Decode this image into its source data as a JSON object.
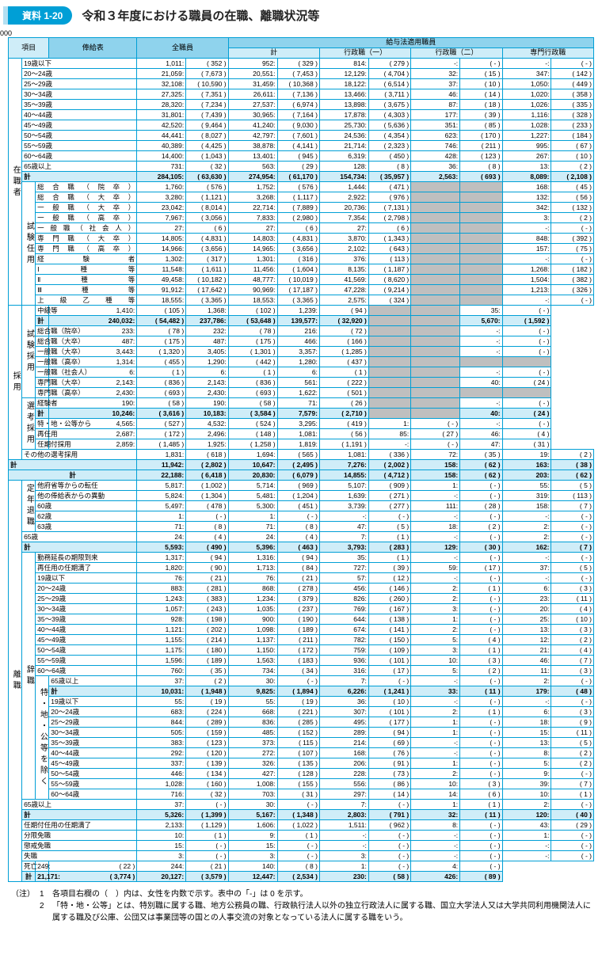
{
  "badge": "資料 1-20",
  "title": "令和３年度における職員の在職、離職状況等",
  "headers": {
    "item": "項目",
    "salary_table": "俸給表",
    "all_emp": "全職員",
    "salary_law_emp": "給与法適用職員",
    "sub_total": "計",
    "admin1": "行政職（一）",
    "admin2": "行政職（二）",
    "special": "専門行政職"
  },
  "footnotes": {
    "tag": "（注）",
    "n1": "各項目右欄の（　）内は、女性を内数で示す。表中の「-」は 0 を示す。",
    "n2": "「特・地・公等」とは、特別職に属する職、地方公務員の職、行政執行法人以外の独立行政法人に属する職、国立大学法人又は大学共同利用機関法人に属する職及び公庫、公団又は事業団等の国との人事交流の対象となっている法人に属する職をいう。"
  },
  "vlabels": {
    "zaishoku": "在職者",
    "shiken_ninyo": "試験任用",
    "saiyou": "採用",
    "shiken_saiyou": "試験採用",
    "senkou_saiyou": "選考採用",
    "teinen_taishoku": "定年退職",
    "rishoku": "離職",
    "jishoku": "辞職",
    "toku_chi": "特・地・公等を除く"
  },
  "rows": [
    {
      "l": "19歳以下",
      "v": [
        "1,011",
        "352",
        "952",
        "329",
        "814",
        "279",
        "-",
        "-",
        "-",
        "-"
      ]
    },
    {
      "l": "20～24歳",
      "v": [
        "21,059",
        "7,673",
        "20,551",
        "7,453",
        "12,129",
        "4,704",
        "32",
        "15",
        "347",
        "142"
      ]
    },
    {
      "l": "25～29歳",
      "v": [
        "32,108",
        "10,590",
        "31,459",
        "10,368",
        "18,122",
        "6,514",
        "37",
        "10",
        "1,050",
        "449"
      ]
    },
    {
      "l": "30～34歳",
      "v": [
        "27,325",
        "7,351",
        "26,611",
        "7,136",
        "13,466",
        "3,711",
        "46",
        "14",
        "1,020",
        "358"
      ]
    },
    {
      "l": "35～39歳",
      "v": [
        "28,320",
        "7,234",
        "27,537",
        "6,974",
        "13,898",
        "3,675",
        "87",
        "18",
        "1,026",
        "335"
      ]
    },
    {
      "l": "40～44歳",
      "v": [
        "31,801",
        "7,439",
        "30,965",
        "7,164",
        "17,878",
        "4,303",
        "177",
        "39",
        "1,116",
        "328"
      ]
    },
    {
      "l": "45～49歳",
      "v": [
        "42,520",
        "9,464",
        "41,240",
        "9,030",
        "25,730",
        "5,636",
        "351",
        "85",
        "1,028",
        "233"
      ]
    },
    {
      "l": "50～54歳",
      "v": [
        "44,441",
        "8,027",
        "42,797",
        "7,601",
        "24,536",
        "4,354",
        "623",
        "170",
        "1,227",
        "184"
      ]
    },
    {
      "l": "55～59歳",
      "v": [
        "40,389",
        "4,425",
        "38,878",
        "4,141",
        "21,714",
        "2,323",
        "746",
        "211",
        "995",
        "67"
      ]
    },
    {
      "l": "60～64歳",
      "v": [
        "14,400",
        "1,043",
        "13,401",
        "945",
        "6,319",
        "450",
        "428",
        "123",
        "267",
        "10"
      ]
    },
    {
      "l": "65歳以上",
      "v": [
        "731",
        "32",
        "563",
        "29",
        "128",
        "8",
        "36",
        "8",
        "13",
        "2"
      ]
    },
    {
      "sum": true,
      "l": "計",
      "v": [
        "284,105",
        "63,630",
        "274,954",
        "61,170",
        "154,734",
        "35,957",
        "2,563",
        "693",
        "8,089",
        "2,108"
      ]
    },
    {
      "l": "総合職（院卒）",
      "jst": true,
      "v": [
        "1,760",
        "576",
        "1,752",
        "576",
        "1,444",
        "471",
        "",
        "",
        "168",
        "45"
      ],
      "grey": [
        3
      ]
    },
    {
      "l": "総合職（大卒）",
      "jst": true,
      "v": [
        "3,280",
        "1,121",
        "3,268",
        "1,117",
        "2,922",
        "976",
        "",
        "",
        "132",
        "56"
      ],
      "grey": [
        3
      ]
    },
    {
      "l": "一般職（大卒）",
      "jst": true,
      "v": [
        "23,042",
        "8,014",
        "22,714",
        "7,889",
        "20,736",
        "7,131",
        "",
        "",
        "342",
        "132"
      ],
      "grey": [
        3
      ]
    },
    {
      "l": "一般職（高卒）",
      "jst": true,
      "v": [
        "7,967",
        "3,056",
        "7,833",
        "2,980",
        "7,354",
        "2,798",
        "",
        "",
        "3",
        "2"
      ],
      "grey": [
        3
      ]
    },
    {
      "l": "一般職（社会人）",
      "jst": true,
      "v": [
        "27",
        "6",
        "27",
        "6",
        "27",
        "6",
        "",
        "",
        "-",
        "-"
      ],
      "grey": [
        3
      ]
    },
    {
      "l": "専門職（大卒）",
      "jst": true,
      "v": [
        "14,805",
        "4,831",
        "14,803",
        "4,831",
        "3,870",
        "1,343",
        "",
        "",
        "848",
        "392"
      ],
      "grey": [
        3
      ]
    },
    {
      "l": "専門職（高卒）",
      "jst": true,
      "v": [
        "14,966",
        "3,656",
        "14,965",
        "3,656",
        "2,102",
        "643",
        "",
        "",
        "157",
        "75"
      ],
      "grey": [
        3
      ]
    },
    {
      "l": "経験者",
      "jst": true,
      "v": [
        "1,302",
        "317",
        "1,301",
        "316",
        "376",
        "113",
        "",
        "",
        "-",
        "-"
      ],
      "grey": [
        3
      ]
    },
    {
      "l": "Ⅰ種等",
      "jst": true,
      "v": [
        "11,548",
        "1,611",
        "11,456",
        "1,604",
        "8,135",
        "1,187",
        "",
        "",
        "1,268",
        "182"
      ],
      "grey": [
        3
      ]
    },
    {
      "l": "Ⅱ種等",
      "jst": true,
      "v": [
        "49,458",
        "10,182",
        "48,777",
        "10,019",
        "41,569",
        "8,620",
        "",
        "",
        "1,504",
        "382"
      ],
      "grey": [
        3
      ]
    },
    {
      "l": "Ⅲ種等",
      "jst": true,
      "v": [
        "91,912",
        "17,642",
        "90,969",
        "17,187",
        "47,228",
        "9,214",
        "",
        "",
        "1,213",
        "326"
      ],
      "grey": [
        3
      ]
    },
    {
      "l": "上級乙種等",
      "jst": true,
      "v": [
        "18,555",
        "3,365",
        "18,553",
        "3,365",
        "2,575",
        "324",
        "",
        "",
        "-",
        "-"
      ],
      "grey": [
        3
      ]
    },
    {
      "l": "中級等",
      "jst": true,
      "v": [
        "1,410",
        "105",
        "1,368",
        "102",
        "1,239",
        "94",
        "",
        "",
        "35",
        "-"
      ],
      "grey": [
        3
      ]
    },
    {
      "sum": true,
      "l": "計",
      "v": [
        "240,032",
        "54,482",
        "237,786",
        "53,648",
        "139,577",
        "32,920",
        "",
        "",
        "5,670",
        "1,592"
      ],
      "grey": [
        3
      ]
    },
    {
      "l": "総合職（院卒）",
      "jst": true,
      "v": [
        "233",
        "78",
        "232",
        "78",
        "216",
        "72",
        "",
        "",
        "-",
        "-"
      ],
      "grey": [
        3
      ]
    },
    {
      "l": "総合職（大卒）",
      "jst": true,
      "v": [
        "487",
        "175",
        "487",
        "175",
        "466",
        "166",
        "",
        "",
        "-",
        "-"
      ],
      "grey": [
        3
      ]
    },
    {
      "l": "一般職（大卒）",
      "jst": true,
      "v": [
        "3,443",
        "1,320",
        "3,405",
        "1,301",
        "3,357",
        "1,285",
        "",
        "",
        "-",
        "-"
      ],
      "grey": [
        3
      ]
    },
    {
      "l": "一般職（高卒）",
      "jst": true,
      "v": [
        "1,314",
        "455",
        "1,290",
        "442",
        "1,280",
        "437",
        "",
        "",
        "",
        "-"
      ],
      "grey": [
        3,
        4
      ]
    },
    {
      "l": "一般職（社会人）",
      "jst": true,
      "v": [
        "6",
        "1",
        "6",
        "1",
        "6",
        "1",
        "",
        "",
        "-",
        "-"
      ],
      "grey": [
        3
      ]
    },
    {
      "l": "専門職（大卒）",
      "jst": true,
      "v": [
        "2,143",
        "836",
        "2,143",
        "836",
        "561",
        "222",
        "",
        "",
        "40",
        "24"
      ],
      "grey": [
        3
      ]
    },
    {
      "l": "専門職（高卒）",
      "jst": true,
      "v": [
        "2,430",
        "693",
        "2,430",
        "693",
        "1,622",
        "501",
        "",
        "",
        "",
        "-"
      ],
      "grey": [
        3,
        4
      ]
    },
    {
      "l": "経験者",
      "jst": true,
      "v": [
        "190",
        "58",
        "190",
        "58",
        "71",
        "26",
        "",
        "",
        "-",
        "-"
      ],
      "grey": [
        3
      ]
    },
    {
      "sum": true,
      "l": "計",
      "v": [
        "10,246",
        "3,616",
        "10,183",
        "3,584",
        "7,579",
        "2,710",
        "",
        "",
        "40",
        "24"
      ],
      "grey": [
        3
      ]
    },
    {
      "l": "特・地・公等から",
      "v": [
        "4,565",
        "527",
        "4,532",
        "524",
        "3,295",
        "419",
        "1",
        "-",
        "-",
        "-"
      ]
    },
    {
      "l": "再任用",
      "v": [
        "2,687",
        "172",
        "2,496",
        "148",
        "1,081",
        "56",
        "85",
        "27",
        "46",
        "4"
      ]
    },
    {
      "l": "任期付採用",
      "v": [
        "2,859",
        "1,485",
        "1,925",
        "1,258",
        "1,819",
        "1,191",
        "-",
        "-",
        "47",
        "31"
      ]
    },
    {
      "l": "その他の選考採用",
      "v": [
        "1,831",
        "618",
        "1,694",
        "565",
        "1,081",
        "336",
        "72",
        "35",
        "19",
        "2"
      ]
    },
    {
      "sum": true,
      "l": "計",
      "v": [
        "11,942",
        "2,802",
        "10,647",
        "2,495",
        "7,276",
        "2,002",
        "158",
        "62",
        "163",
        "38"
      ]
    },
    {
      "sum": true,
      "lc": "計",
      "v": [
        "22,188",
        "6,418",
        "20,830",
        "6,079",
        "14,855",
        "4,712",
        "158",
        "62",
        "203",
        "62"
      ]
    },
    {
      "l": "他府省等からの転任",
      "v": [
        "5,817",
        "1,002",
        "5,714",
        "969",
        "5,107",
        "909",
        "1",
        "-",
        "55",
        "5"
      ]
    },
    {
      "l": "他の俸給表からの異動",
      "v": [
        "5,824",
        "1,304",
        "5,481",
        "1,204",
        "1,639",
        "271",
        "-",
        "-",
        "319",
        "113"
      ]
    },
    {
      "l": "60歳",
      "v": [
        "5,497",
        "478",
        "5,300",
        "451",
        "3,739",
        "277",
        "111",
        "28",
        "158",
        "7"
      ]
    },
    {
      "l": "62歳",
      "v": [
        "1",
        "-",
        "1",
        "-",
        "-",
        "-",
        "-",
        "-",
        "-",
        "-"
      ]
    },
    {
      "l": "63歳",
      "v": [
        "71",
        "8",
        "71",
        "8",
        "47",
        "5",
        "18",
        "2",
        "2",
        "-"
      ]
    },
    {
      "l": "65歳",
      "v": [
        "24",
        "4",
        "24",
        "4",
        "7",
        "1",
        "-",
        "-",
        "2",
        "-"
      ]
    },
    {
      "sum": true,
      "l": "計",
      "v": [
        "5,593",
        "490",
        "5,396",
        "463",
        "3,793",
        "283",
        "129",
        "30",
        "162",
        "7"
      ]
    },
    {
      "l": "勤務延長の期限到来",
      "v": [
        "1,317",
        "94",
        "1,316",
        "94",
        "35",
        "1",
        "-",
        "-",
        "-",
        "-"
      ]
    },
    {
      "l": "再任用の任期満了",
      "v": [
        "1,820",
        "90",
        "1,713",
        "84",
        "727",
        "39",
        "59",
        "17",
        "37",
        "5"
      ]
    },
    {
      "l": "19歳以下",
      "v": [
        "76",
        "21",
        "76",
        "21",
        "57",
        "12",
        "-",
        "-",
        "-",
        "-"
      ]
    },
    {
      "l": "20～24歳",
      "v": [
        "883",
        "281",
        "868",
        "278",
        "456",
        "146",
        "2",
        "1",
        "6",
        "3"
      ]
    },
    {
      "l": "25～29歳",
      "v": [
        "1,243",
        "383",
        "1,234",
        "379",
        "826",
        "260",
        "2",
        "-",
        "23",
        "11"
      ]
    },
    {
      "l": "30～34歳",
      "v": [
        "1,057",
        "243",
        "1,035",
        "237",
        "769",
        "167",
        "3",
        "-",
        "20",
        "4"
      ]
    },
    {
      "l": "35～39歳",
      "v": [
        "928",
        "198",
        "900",
        "190",
        "644",
        "138",
        "1",
        "-",
        "25",
        "10"
      ]
    },
    {
      "l": "40～44歳",
      "v": [
        "1,121",
        "202",
        "1,098",
        "189",
        "674",
        "141",
        "2",
        "-",
        "13",
        "3"
      ]
    },
    {
      "l": "45～49歳",
      "v": [
        "1,155",
        "214",
        "1,137",
        "211",
        "782",
        "150",
        "5",
        "4",
        "12",
        "2"
      ]
    },
    {
      "l": "50～54歳",
      "v": [
        "1,175",
        "180",
        "1,150",
        "172",
        "759",
        "109",
        "3",
        "1",
        "21",
        "4"
      ]
    },
    {
      "l": "55～59歳",
      "v": [
        "1,596",
        "189",
        "1,563",
        "183",
        "936",
        "101",
        "10",
        "3",
        "46",
        "7"
      ]
    },
    {
      "l": "60～64歳",
      "v": [
        "760",
        "35",
        "734",
        "34",
        "316",
        "17",
        "5",
        "2",
        "11",
        "3"
      ]
    },
    {
      "l": "65歳以上",
      "v": [
        "37",
        "2",
        "30",
        "-",
        "7",
        "-",
        "-",
        "-",
        "2",
        "-"
      ]
    },
    {
      "sum": true,
      "l": "計",
      "v": [
        "10,031",
        "1,948",
        "9,825",
        "1,894",
        "6,226",
        "1,241",
        "33",
        "11",
        "179",
        "48"
      ]
    },
    {
      "l": "19歳以下",
      "v": [
        "55",
        "19",
        "55",
        "19",
        "36",
        "10",
        "-",
        "-",
        "-",
        "-"
      ]
    },
    {
      "l": "20～24歳",
      "v": [
        "683",
        "224",
        "668",
        "221",
        "307",
        "101",
        "2",
        "1",
        "6",
        "3"
      ]
    },
    {
      "l": "25～29歳",
      "v": [
        "844",
        "289",
        "836",
        "285",
        "495",
        "177",
        "1",
        "-",
        "18",
        "9"
      ]
    },
    {
      "l": "30～34歳",
      "v": [
        "505",
        "159",
        "485",
        "152",
        "289",
        "94",
        "1",
        "-",
        "15",
        "11"
      ]
    },
    {
      "l": "35～39歳",
      "v": [
        "383",
        "123",
        "373",
        "115",
        "214",
        "69",
        "-",
        "-",
        "13",
        "5"
      ]
    },
    {
      "l": "40～44歳",
      "v": [
        "292",
        "120",
        "272",
        "107",
        "168",
        "76",
        "-",
        "-",
        "8",
        "2"
      ]
    },
    {
      "l": "45～49歳",
      "v": [
        "337",
        "139",
        "326",
        "135",
        "206",
        "91",
        "1",
        "-",
        "5",
        "2"
      ]
    },
    {
      "l": "50～54歳",
      "v": [
        "446",
        "134",
        "427",
        "128",
        "228",
        "73",
        "2",
        "-",
        "9",
        "-"
      ]
    },
    {
      "l": "55～59歳",
      "v": [
        "1,028",
        "160",
        "1,008",
        "155",
        "556",
        "86",
        "10",
        "3",
        "39",
        "7"
      ]
    },
    {
      "l": "60～64歳",
      "v": [
        "716",
        "32",
        "703",
        "31",
        "297",
        "14",
        "14",
        "6",
        "10",
        "1"
      ]
    },
    {
      "l": "65歳以上",
      "v": [
        "37",
        "-",
        "30",
        "-",
        "7",
        "-",
        "1",
        "1",
        "2",
        "-"
      ]
    },
    {
      "sum": true,
      "l": "計",
      "v": [
        "5,326",
        "1,399",
        "5,167",
        "1,348",
        "2,803",
        "791",
        "32",
        "11",
        "120",
        "40"
      ]
    },
    {
      "l": "任期付任用の任期満了",
      "v": [
        "2,133",
        "1,129",
        "1,606",
        "1,022",
        "1,511",
        "962",
        "8",
        "-",
        "43",
        "29"
      ]
    },
    {
      "l": "分限免職",
      "v": [
        "10",
        "1",
        "9",
        "1",
        "-",
        "-",
        "-",
        "-",
        "1",
        "-"
      ]
    },
    {
      "l": "懲戒免職",
      "v": [
        "15",
        "-",
        "15",
        "-",
        "-",
        "-",
        "-",
        "-",
        "-",
        "-"
      ]
    },
    {
      "l": "失職",
      "v": [
        "3",
        "-",
        "3",
        "-",
        "3",
        "-",
        "-",
        "-",
        "-",
        "-"
      ]
    },
    {
      "l": "死亡",
      "v": [
        "249",
        "22",
        "244",
        "21",
        "140",
        "8",
        "1",
        "-",
        "4",
        "-"
      ]
    },
    {
      "sum": true,
      "lc": "計",
      "v": [
        "21,171",
        "3,774",
        "20,127",
        "3,579",
        "12,447",
        "2,534",
        "230",
        "58",
        "426",
        "89"
      ]
    }
  ]
}
